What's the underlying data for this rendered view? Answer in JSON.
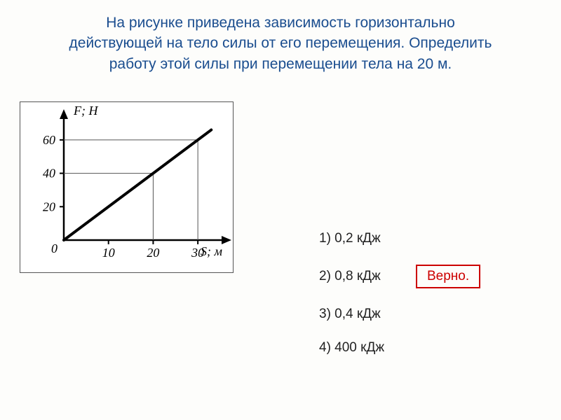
{
  "title_line1": "На рисунке приведена зависимость горизонтально",
  "title_line2": "действующей на тело силы от его перемещения. Определить",
  "title_line3": "работу этой силы при перемещении тела на 20 м.",
  "chart": {
    "type": "line",
    "y_axis_label": "F; Н",
    "x_axis_label": "S; м",
    "y_ticks": [
      20,
      40,
      60
    ],
    "x_ticks": [
      10,
      20,
      30
    ],
    "xlim": [
      0,
      35
    ],
    "ylim": [
      0,
      70
    ],
    "origin_label": "0",
    "line_start": [
      0,
      0
    ],
    "line_end": [
      33,
      66
    ],
    "line_color": "#000000",
    "line_width": 4,
    "axis_color": "#000000",
    "axis_width": 2.5,
    "tick_font_size": 18,
    "label_font_size": 18,
    "label_font_style": "italic",
    "guide_lines": [
      {
        "x": 20,
        "y": 40
      },
      {
        "x": 30,
        "y": 60
      }
    ],
    "guide_color": "#555555",
    "guide_width": 1
  },
  "answers": {
    "opt1": "1)  0,2 кДж",
    "opt2": "2)  0,8 кДж",
    "opt3": "3)  0,4 кДж",
    "opt4": "4)  400 кДж",
    "correct_label": "Верно.",
    "correct_index": 2
  },
  "colors": {
    "title": "#1a4d8f",
    "text": "#222222",
    "correct_border": "#cc0000",
    "correct_text": "#cc0000",
    "bg": "#fdfdfb"
  }
}
